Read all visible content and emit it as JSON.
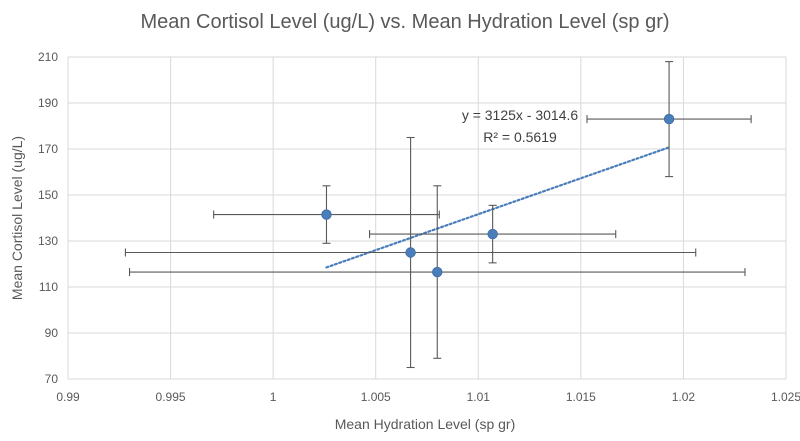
{
  "chart_data": {
    "type": "scatter",
    "title": "Mean Cortisol Level (ug/L) vs. Mean Hydration Level (sp gr)",
    "xlabel": "Mean Hydration Level (sp gr)",
    "ylabel": "Mean Cortisol Level (ug/L)",
    "xlim": [
      0.99,
      1.025
    ],
    "ylim": [
      70,
      210
    ],
    "x_ticks": [
      "0.99",
      "0.995",
      "1",
      "1.005",
      "1.01",
      "1.015",
      "1.02",
      "1.025"
    ],
    "y_ticks": [
      "70",
      "90",
      "110",
      "130",
      "150",
      "170",
      "190",
      "210"
    ],
    "grid": "vertical and horizontal",
    "points": [
      {
        "x": 1.0026,
        "y": 141.5,
        "x_err": 0.0055,
        "y_err": 12.5
      },
      {
        "x": 1.0067,
        "y": 125.0,
        "x_err": 0.0139,
        "y_err": 50.0
      },
      {
        "x": 1.008,
        "y": 116.5,
        "x_err": 0.015,
        "y_err": 37.5
      },
      {
        "x": 1.0107,
        "y": 133.0,
        "x_err": 0.006,
        "y_err": 12.5
      },
      {
        "x": 1.0193,
        "y": 183.0,
        "x_err": 0.004,
        "y_err": 25.0
      }
    ],
    "trendline": {
      "style": "dotted",
      "slope": 3125,
      "intercept": -3014.6,
      "x_range": [
        1.0026,
        1.0193
      ],
      "equation": "y = 3125x - 3014.6",
      "r_squared": "R² = 0.5619"
    },
    "colors": {
      "marker": "#4a7ebb",
      "trendline": "#4a7ebb",
      "error_bar": "#595959",
      "grid": "#d9d9d9",
      "text": "#595959"
    }
  }
}
